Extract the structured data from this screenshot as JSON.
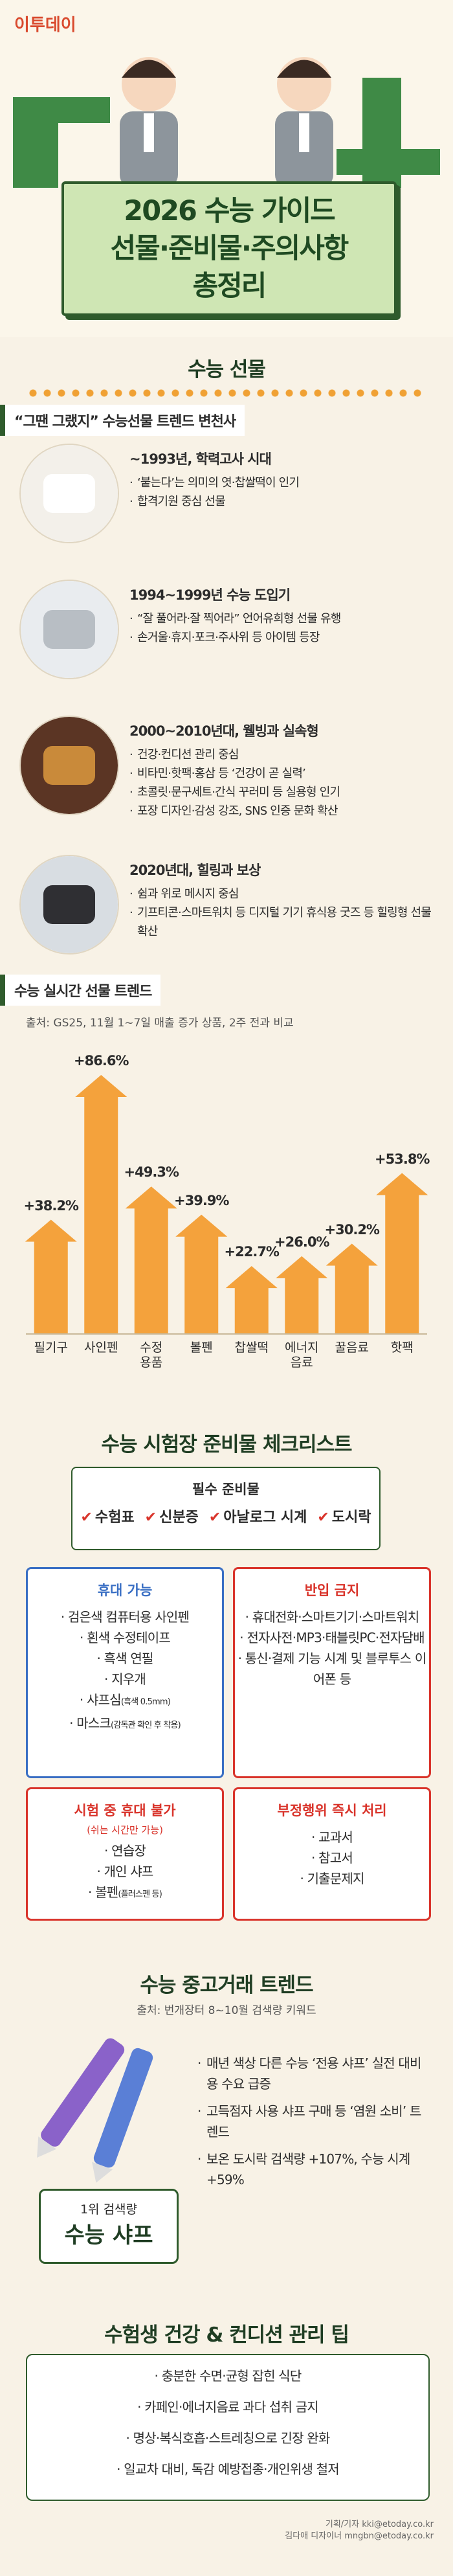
{
  "header": {
    "logo": "이투데이",
    "title_lines": [
      "2026 수능 가이드",
      "선물·준비물·주의사항",
      "총정리"
    ]
  },
  "gifts": {
    "heading": "수능 선물",
    "subheading": "“그땐 그랬지” 수능선물 트렌드 변천사",
    "eras": [
      {
        "title": "~1993년, 학력고사 시대",
        "items": [
          "‘붙는다’는 의미의 엿·찹쌀떡이 인기",
          "합격기원 중심 선물"
        ]
      },
      {
        "title": "1994~1999년 수능 도입기",
        "items": [
          "“잘 풀어라·잘 찍어라” 언어유희형 선물 유행",
          "손거울·휴지·포크·주사위 등 아이템 등장"
        ]
      },
      {
        "title": "2000~2010년대, 웰빙과 실속형",
        "items": [
          "건강·컨디션 관리 중심",
          "비타민·핫팩·홍삼 등 ‘건강이 곧 실력’",
          "초콜릿·문구세트·간식 꾸러미 등 실용형 인기",
          "포장 디자인·감성 강조, SNS 인증 문화 확산"
        ]
      },
      {
        "title": "2020년대, 힐링과 보상",
        "items": [
          "쉼과 위로 메시지 중심",
          "기프티콘·스마트워치 등 디지털 기기 휴식용 굿즈 등 힐링형 선물 확산"
        ]
      }
    ]
  },
  "chart_data": {
    "type": "bar",
    "title": "수능 실시간 선물 트렌드",
    "subtitle": "출처: GS25, 11월 1~7일 매출 증가 상품, 2주 전과 비교",
    "categories": [
      "필기구",
      "사인펜",
      "수정\n용품",
      "볼펜",
      "찹쌀떡",
      "에너지\n음료",
      "꿀음료",
      "핫팩"
    ],
    "values": [
      38.2,
      86.6,
      49.3,
      39.9,
      22.7,
      26.0,
      30.2,
      53.8
    ],
    "value_labels": [
      "+38.2%",
      "+86.6%",
      "+49.3%",
      "+39.9%",
      "+22.7%",
      "+26.0%",
      "+30.2%",
      "+53.8%"
    ],
    "color": "#f4a23c"
  },
  "checklist": {
    "heading": "수능 시험장 준비물 체크리스트",
    "required": {
      "title": "필수 준비물",
      "items": [
        "수험표",
        "신분증",
        "아날로그 시계",
        "도시락"
      ]
    },
    "allowed": {
      "title": "휴대 가능",
      "items": [
        {
          "text": "검은색 컴퓨터용 사인펜"
        },
        {
          "text": "흰색 수정테이프"
        },
        {
          "text": "흑색 연필"
        },
        {
          "text": "지우개"
        },
        {
          "text": "샤프심",
          "note": "(흑색 0.5mm)"
        },
        {
          "text": "마스크",
          "note": "(감독관 확인 후 착용)"
        }
      ]
    },
    "banned": {
      "title": "반입 금지",
      "items": [
        {
          "text": "휴대전화·스마트기기·스마트워치"
        },
        {
          "text": "전자사전·MP3·태블릿PC·전자담배"
        },
        {
          "text": "통신·결제 기능 시계 및 블루투스 이어폰 등"
        }
      ]
    },
    "no_carry": {
      "title": "시험 중 휴대 불가",
      "subtitle": "(쉬는 시간만 가능)",
      "items": [
        {
          "text": "연습장"
        },
        {
          "text": "개인 샤프"
        },
        {
          "text": "볼펜",
          "note": "(플러스펜 등)"
        }
      ]
    },
    "cheating": {
      "title": "부정행위 즉시 처리",
      "items": [
        {
          "text": "교과서"
        },
        {
          "text": "참고서"
        },
        {
          "text": "기출문제지"
        }
      ]
    }
  },
  "used_market": {
    "heading": "수능 중고거래 트렌드",
    "source": "출처: 번개장터 8~10월 검색량 키워드",
    "badge_small": "1위 검색량",
    "badge_big": "수능 샤프",
    "items": [
      "매년 색상 다른 수능 ‘전용 샤프’ 실전 대비용 수요 급증",
      "고득점자 사용 샤프 구매 등 ‘염원 소비’ 트렌드",
      "보온 도시락 검색량 +107%, 수능 시계 +59%"
    ]
  },
  "health": {
    "heading": "수험생 건강 & 컨디션 관리 팁",
    "items": [
      "충분한 수면·균형 잡힌 식단",
      "카페인·에너지음료 과다 섭취 금지",
      "명상·복식호흡·스트레칭으로 긴장 완화",
      "일교차 대비, 독감 예방접종·개인위생 철저"
    ]
  },
  "footer": [
    "기획/기자 kki@etoday.co.kr",
    "김다애 디자이너 mngbn@etoday.co.kr"
  ]
}
